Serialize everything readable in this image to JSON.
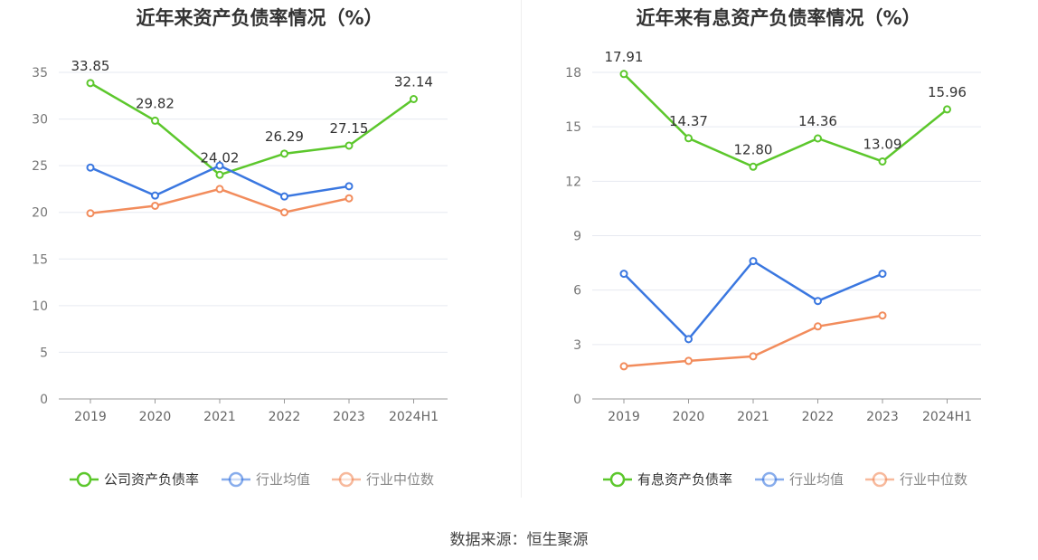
{
  "source": "数据来源：恒生聚源",
  "chart_data": [
    {
      "type": "line",
      "title": "近年来资产负债率情况（%）",
      "categories": [
        "2019",
        "2020",
        "2021",
        "2022",
        "2023",
        "2024H1"
      ],
      "ylim": [
        0,
        35
      ],
      "yticks": [
        0,
        5,
        10,
        15,
        20,
        25,
        30,
        35
      ],
      "series": [
        {
          "name": "公司资产负债率",
          "color": "#5cc72c",
          "values": [
            33.85,
            29.82,
            24.02,
            26.29,
            27.15,
            32.14
          ],
          "labels": [
            "33.85",
            "29.82",
            "24.02",
            "26.29",
            "27.15",
            "32.14"
          ]
        },
        {
          "name": "行业均值",
          "color": "#3a77e0",
          "values": [
            24.8,
            21.8,
            25,
            21.7,
            22.8,
            null
          ]
        },
        {
          "name": "行业中位数",
          "color": "#f28c5c",
          "values": [
            19.9,
            20.7,
            22.5,
            20,
            21.5,
            null
          ]
        }
      ]
    },
    {
      "type": "line",
      "title": "近年来有息资产负债率情况（%）",
      "categories": [
        "2019",
        "2020",
        "2021",
        "2022",
        "2023",
        "2024H1"
      ],
      "ylim": [
        0,
        18
      ],
      "yticks": [
        0,
        3,
        6,
        9,
        12,
        15,
        18
      ],
      "series": [
        {
          "name": "有息资产负债率",
          "color": "#5cc72c",
          "values": [
            17.91,
            14.37,
            12.8,
            14.36,
            13.09,
            15.96
          ],
          "labels": [
            "17.91",
            "14.37",
            "12.80",
            "14.36",
            "13.09",
            "15.96"
          ]
        },
        {
          "name": "行业均值",
          "color": "#3a77e0",
          "values": [
            6.9,
            3.3,
            7.6,
            5.4,
            6.9,
            null
          ]
        },
        {
          "name": "行业中位数",
          "color": "#f28c5c",
          "values": [
            1.8,
            2.1,
            2.35,
            4,
            4.6,
            null
          ]
        }
      ]
    }
  ]
}
